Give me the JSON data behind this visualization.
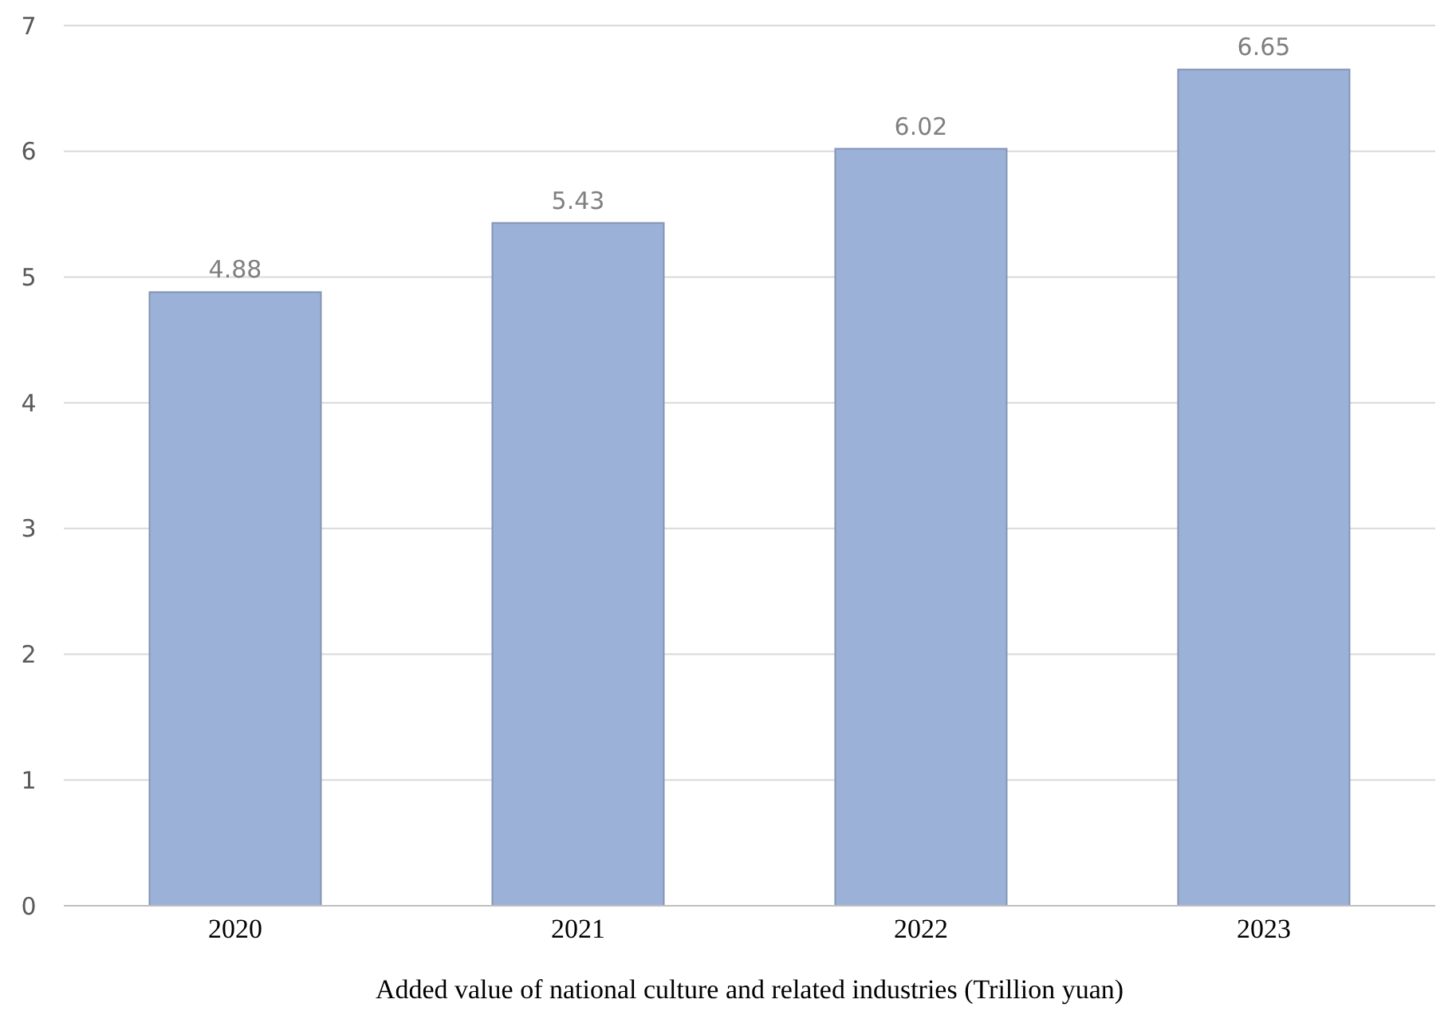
{
  "chart_data": {
    "type": "bar",
    "xlabel": "Added value of national culture and related industries (Trillion yuan)",
    "categories": [
      "2020",
      "2021",
      "2022",
      "2023"
    ],
    "values": [
      4.88,
      5.43,
      6.02,
      6.65
    ],
    "color": "#9cb1d7",
    "ylim": [
      0,
      7
    ],
    "yticks": [
      0,
      1,
      2,
      3,
      4,
      5,
      6,
      7
    ],
    "grid": "y",
    "data_labels": true
  }
}
